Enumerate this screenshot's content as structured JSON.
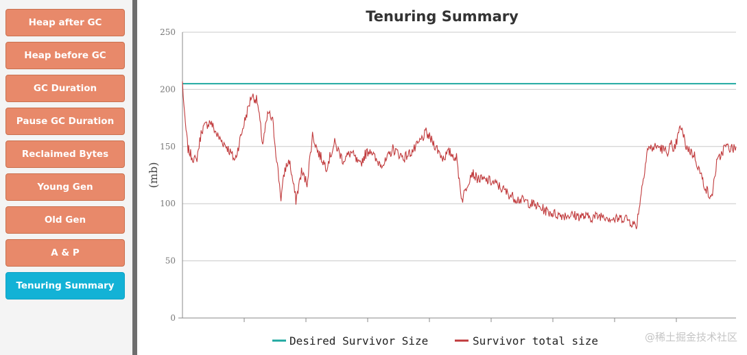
{
  "sidebar": {
    "items": [
      {
        "label": "Heap after GC",
        "active": false
      },
      {
        "label": "Heap before GC",
        "active": false
      },
      {
        "label": "GC Duration",
        "active": false
      },
      {
        "label": "Pause GC Duration",
        "active": false
      },
      {
        "label": "Reclaimed Bytes",
        "active": false
      },
      {
        "label": "Young Gen",
        "active": false
      },
      {
        "label": "Old Gen",
        "active": false
      },
      {
        "label": "A & P",
        "active": false
      },
      {
        "label": "Tenuring Summary",
        "active": true
      }
    ]
  },
  "colors": {
    "nav_button": "#e8896a",
    "nav_button_active": "#13b2d6",
    "desired_series": "#1fa8a0",
    "survivor_series": "#c0393b"
  },
  "watermark": "@稀土掘金技术社区",
  "chart_data": {
    "type": "line",
    "title": "Tenuring Summary",
    "xlabel": "",
    "ylabel": "(mb)",
    "ylim": [
      0,
      250
    ],
    "yticks": [
      0,
      50,
      100,
      150,
      200,
      250
    ],
    "grid": true,
    "legend_position": "bottom",
    "x_domain": [
      0,
      100
    ],
    "series": [
      {
        "name": "Desired Survivor Size",
        "color": "#1fa8a0",
        "x": [
          0,
          100
        ],
        "y": [
          205,
          205
        ]
      },
      {
        "name": "Survivor total size",
        "color": "#c0393b",
        "x": [
          0,
          0.4,
          1,
          1.6,
          2.5,
          3.5,
          5,
          6.5,
          8,
          9.5,
          11,
          12.5,
          13.5,
          14.5,
          15.5,
          16.3,
          17,
          17.8,
          18.5,
          19.3,
          20.5,
          21.5,
          22.5,
          23.5,
          24.5,
          26,
          27.5,
          29,
          30.5,
          32,
          33,
          34,
          35,
          36.5,
          38,
          40,
          42,
          44,
          45.5,
          47,
          48.2,
          49.5,
          50.5,
          51.5,
          52.3,
          53,
          54,
          55.5,
          57,
          58.5,
          60,
          62,
          64,
          66,
          68,
          70,
          72,
          74,
          76,
          78,
          80,
          82,
          84,
          86,
          87.5,
          88.3,
          88.6,
          88.9,
          89.3,
          90,
          91,
          92.5,
          94,
          95.5,
          96.5,
          98,
          99.5,
          100
        ],
        "y": [
          206,
          175,
          148,
          142,
          137,
          165,
          172,
          158,
          150,
          138,
          168,
          195,
          190,
          152,
          180,
          172,
          140,
          105,
          130,
          138,
          103,
          128,
          118,
          160,
          145,
          132,
          153,
          138,
          145,
          133,
          143,
          148,
          137,
          135,
          148,
          140,
          148,
          162,
          152,
          140,
          145,
          140,
          103,
          118,
          128,
          123,
          121,
          120,
          116,
          110,
          105,
          102,
          98,
          93,
          90,
          90,
          89,
          88,
          90,
          86,
          88,
          80,
          148,
          150,
          145,
          152,
          142,
          148,
          155,
          168,
          150,
          142,
          120,
          103,
          135,
          150,
          148,
          150
        ]
      }
    ]
  }
}
